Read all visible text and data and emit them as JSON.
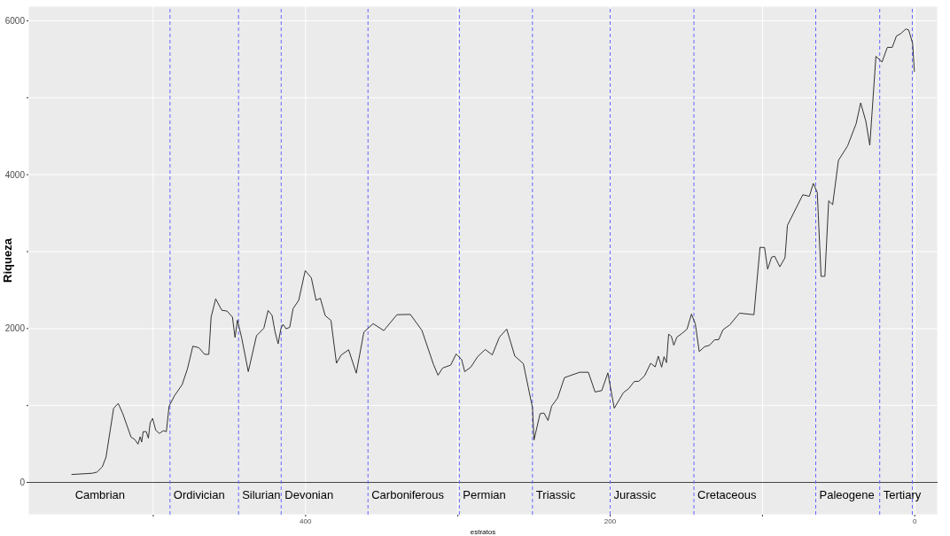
{
  "chart_data": {
    "type": "line",
    "xlabel": "estratos",
    "ylabel": "Riqueza",
    "xlim": [
      582,
      -15
    ],
    "xticks": [
      {
        "value": 500,
        "label": null
      },
      400,
      {
        "value": 300,
        "label": null
      },
      200,
      {
        "value": 100,
        "label": null
      },
      0
    ],
    "ylim": [
      -420,
      6190
    ],
    "yticks": [
      0,
      {
        "value": 1000,
        "label": null
      },
      2000,
      {
        "value": 3000,
        "label": null
      },
      4000,
      {
        "value": 5000,
        "label": null
      },
      6000
    ],
    "grid": true,
    "legend": false,
    "marker": "none",
    "line_style": "solid",
    "series": [
      {
        "color": "#333333",
        "x": [
          553.7,
          540,
          537,
          533.5,
          531,
          526,
          523,
          520,
          514.6,
          512,
          510,
          508.6,
          507.6,
          506.6,
          504.6,
          503.2,
          502,
          500.4,
          498.4,
          496,
          493.4,
          491.4,
          489.6,
          486,
          481,
          477.5,
          474,
          470,
          466.3,
          463.5,
          462,
          459,
          455,
          451.5,
          448,
          446.3,
          444.7,
          441.9,
          437.6,
          432.2,
          427.4,
          424.6,
          422,
          420,
          418,
          416.2,
          414.8,
          412.8,
          410.4,
          408.2,
          404.5,
          400.2,
          396.2,
          393.1,
          390.3,
          387.1,
          383.3,
          379.7,
          376.7,
          371.7,
          366.7,
          361.7,
          355.6,
          348.6,
          340,
          331.2,
          323.6,
          316,
          313,
          310,
          304.7,
          301.1,
          297.5,
          295.5,
          291.5,
          287,
          282,
          277.4,
          272.7,
          267.9,
          262.6,
          257,
          251,
          250,
          246,
          243.4,
          240.8,
          238.4,
          234.5,
          230,
          220,
          214.3,
          209.9,
          205.5,
          201.5,
          197.3,
          191.3,
          187.9,
          184.2,
          181.2,
          177.4,
          173.4,
          170.4,
          168.4,
          166.2,
          164.6,
          163,
          161.6,
          159.8,
          158.2,
          156.2,
          153,
          149.5,
          146.6,
          144.1,
          141.5,
          138.1,
          134.7,
          131.5,
          128.7,
          125.9,
          121.5,
          115.1,
          105.6,
          101.6,
          98.6,
          96.6,
          94,
          92,
          88.6,
          85.2,
          83.6,
          73.5,
          69.2,
          66.6,
          64,
          61.5,
          59,
          56.5,
          53.9,
          50.1,
          44.1,
          38.5,
          35.5,
          32.1,
          29.5,
          25.5,
          21.5,
          18,
          14.8,
          12,
          9.4,
          5.8,
          4,
          1.4,
          0.2
        ],
        "values": [
          103,
          119,
          134,
          201,
          329,
          964,
          1027,
          894,
          590,
          555,
          497,
          594,
          524,
          660,
          660,
          575,
          777,
          832,
          680,
          637,
          672,
          660,
          992,
          1128,
          1272,
          1479,
          1771,
          1751,
          1665,
          1665,
          2149,
          2386,
          2238,
          2227,
          2149,
          1884,
          2110,
          1876,
          1440,
          1907,
          2004,
          2235,
          2172,
          1954,
          1802,
          1997,
          2055,
          1997,
          2016,
          2258,
          2367,
          2753,
          2659,
          2367,
          2394,
          2168,
          2106,
          1549,
          1654,
          1724,
          1420,
          1954,
          2063,
          1974,
          2180,
          2184,
          1977,
          1533,
          1393,
          1487,
          1525,
          1670,
          1596,
          1440,
          1498,
          1635,
          1728,
          1658,
          1888,
          1993,
          1642,
          1545,
          972,
          551,
          894,
          902,
          805,
          992,
          1097,
          1362,
          1432,
          1432,
          1175,
          1194,
          1424,
          964,
          1167,
          1218,
          1311,
          1315,
          1385,
          1549,
          1502,
          1642,
          1498,
          1635,
          1557,
          1927,
          1899,
          1783,
          1888,
          1934,
          1993,
          2188,
          2063,
          1701,
          1763,
          1783,
          1853,
          1857,
          1985,
          2047,
          2200,
          2180,
          3056,
          3053,
          2772,
          2928,
          2940,
          2803,
          2920,
          3341,
          3739,
          3719,
          3887,
          3769,
          2679,
          2679,
          3661,
          3610,
          4186,
          4374,
          4662,
          4934,
          4693,
          4382,
          5539,
          5465,
          5655,
          5655,
          5803,
          5831,
          5894,
          5881,
          5706,
          5336
        ]
      }
    ],
    "ref_lines": [
      {
        "axis": "y",
        "value": 0,
        "color": "#444444",
        "line_style": "solid"
      },
      {
        "axis": "x",
        "value": 489,
        "color": "#6666ff",
        "line_style": "dashed"
      },
      {
        "axis": "x",
        "value": 444,
        "color": "#6666ff",
        "line_style": "dashed"
      },
      {
        "axis": "x",
        "value": 416,
        "color": "#6666ff",
        "line_style": "dashed"
      },
      {
        "axis": "x",
        "value": 359,
        "color": "#6666ff",
        "line_style": "dashed"
      },
      {
        "axis": "x",
        "value": 299,
        "color": "#6666ff",
        "line_style": "dashed"
      },
      {
        "axis": "x",
        "value": 251,
        "color": "#6666ff",
        "line_style": "dashed"
      },
      {
        "axis": "x",
        "value": 200,
        "color": "#6666ff",
        "line_style": "dashed"
      },
      {
        "axis": "x",
        "value": 145,
        "color": "#6666ff",
        "line_style": "dashed"
      },
      {
        "axis": "x",
        "value": 65,
        "color": "#6666ff",
        "line_style": "dashed"
      },
      {
        "axis": "x",
        "value": 23,
        "color": "#6666ff",
        "line_style": "dashed"
      },
      {
        "axis": "x",
        "value": 1.6,
        "color": "#6666ff",
        "line_style": "dashed"
      }
    ],
    "annotations": [
      "Cambrian",
      "Ordivician",
      "Silurian",
      "Devonian",
      "Carboniferous",
      "Permian",
      "Triassic",
      "Jurassic",
      "Cretaceous",
      "Paleogene",
      "Tertiary"
    ]
  }
}
